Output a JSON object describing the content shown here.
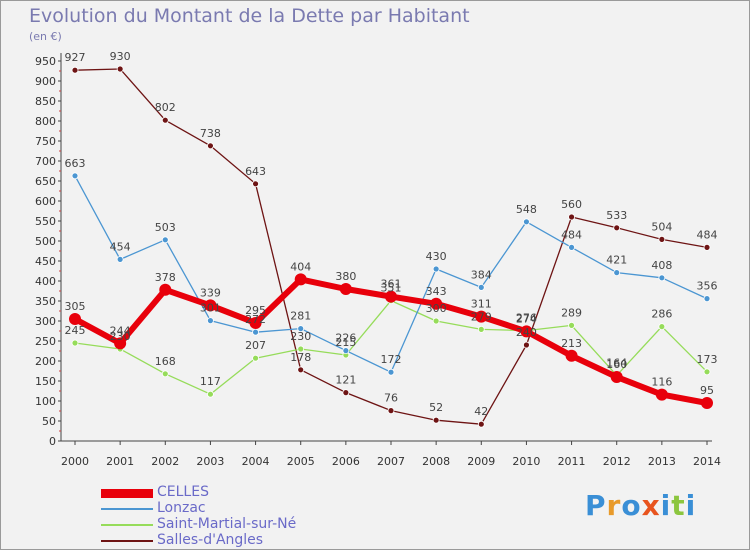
{
  "chart_data": {
    "type": "line",
    "title": "Evolution du Montant de la Dette par Habitant",
    "subtitle": "(en €)",
    "x": [
      "2000",
      "2001",
      "2002",
      "2003",
      "2004",
      "2005",
      "2006",
      "2007",
      "2008",
      "2009",
      "2010",
      "2011",
      "2012",
      "2013",
      "2014"
    ],
    "ylim": [
      0,
      950
    ],
    "yticks": [
      0,
      50,
      100,
      150,
      200,
      250,
      300,
      350,
      400,
      450,
      500,
      550,
      600,
      650,
      700,
      750,
      800,
      850,
      900,
      950
    ],
    "grid": false,
    "legend_position": "bottom-left",
    "series": [
      {
        "name": "CELLES",
        "color": "#e8000b",
        "values": [
          305,
          244,
          378,
          339,
          295,
          404,
          380,
          361,
          343,
          311,
          274,
          213,
          160,
          116,
          95
        ]
      },
      {
        "name": "Lonzac",
        "color": "#4b96d2",
        "values": [
          663,
          454,
          503,
          301,
          272,
          281,
          226,
          172,
          430,
          384,
          548,
          484,
          421,
          408,
          356
        ]
      },
      {
        "name": "Saint-Martial-sur-Né",
        "color": "#96dc5a",
        "values": [
          245,
          230,
          168,
          117,
          207,
          230,
          215,
          351,
          300,
          279,
          276,
          289,
          164,
          286,
          173
        ]
      },
      {
        "name": "Salles-d'Angles",
        "color": "#6e1414",
        "values": [
          927,
          930,
          802,
          738,
          643,
          178,
          121,
          76,
          52,
          42,
          240,
          560,
          533,
          504,
          484
        ]
      }
    ]
  },
  "branding": {
    "logo_text": "Proxiti",
    "logo_letters": [
      {
        "ch": "P",
        "color": "#3a8fd6"
      },
      {
        "ch": "r",
        "color": "#e89a2a"
      },
      {
        "ch": "o",
        "color": "#3a8fd6"
      },
      {
        "ch": "x",
        "color": "#e8541e"
      },
      {
        "ch": "i",
        "color": "#3a8fd6"
      },
      {
        "ch": "t",
        "color": "#8cc63f"
      },
      {
        "ch": "i",
        "color": "#3a8fd6"
      }
    ]
  }
}
